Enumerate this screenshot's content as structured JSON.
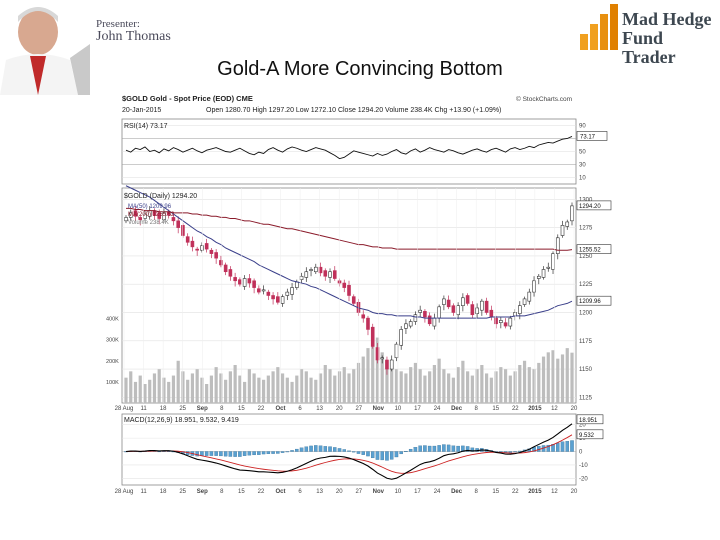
{
  "presenter": {
    "label": "Presenter:",
    "name": "John Thomas"
  },
  "logo": {
    "line1": "Mad Hedge",
    "line2": "Fund Trader",
    "accent": "#f0a020"
  },
  "slide_title": "Gold-A More Convincing Bottom",
  "chart_data": {
    "type": "candlestick",
    "header": {
      "symbol_line": "$GOLD Gold - Spot Price (EOD) CME",
      "source": "© StockCharts.com",
      "date": "20-Jan-2015",
      "quote": "Open 1280.70 High 1297.20 Low 1272.10 Close 1294.20 Volume 238.4K Chg +13.90 (+1.09%)"
    },
    "rsi": {
      "label": "RSI(14) 73.17",
      "ticks": [
        90,
        70,
        50,
        30,
        10
      ],
      "ylim": [
        0,
        100
      ],
      "last_value_label": "73.17",
      "values": [
        52,
        49,
        55,
        53,
        57,
        50,
        52,
        48,
        54,
        51,
        56,
        53,
        49,
        52,
        55,
        51,
        48,
        52,
        54,
        56,
        53,
        50,
        49,
        52,
        55,
        51,
        47,
        45,
        49,
        47,
        53,
        56,
        52,
        49,
        54,
        57,
        55,
        52,
        50,
        53,
        56,
        54,
        52,
        48,
        44,
        39,
        41,
        46,
        51,
        49,
        47,
        45,
        43,
        47,
        44,
        46,
        50,
        53,
        48,
        46,
        51,
        54,
        49,
        52,
        56,
        53,
        51,
        49,
        53,
        51,
        48,
        46,
        49,
        52,
        54,
        51,
        49,
        53,
        55,
        52,
        49,
        54,
        56,
        53,
        55,
        58,
        56,
        60,
        62,
        64,
        63,
        66,
        69,
        70,
        73.17
      ]
    },
    "price": {
      "label": "$GOLD (Daily) 1294.20",
      "legend": [
        "MA(50) 1209.96",
        "MA(200) 1255.52",
        "Volume 238.4K"
      ],
      "ticks": [
        1300,
        1275,
        1250,
        1225,
        1200,
        1175,
        1150,
        1125
      ],
      "ylim": [
        1120,
        1310
      ],
      "last_labels": [
        "1294.20",
        "1255.52",
        "1209.96"
      ],
      "volume_ticks": [
        "400K",
        "300K",
        "200K",
        "100K"
      ],
      "volume_max": 450,
      "x_labels": [
        "28 Aug",
        "11",
        "18",
        "25",
        "Sep",
        "8",
        "15",
        "22",
        "Oct",
        "6",
        "13",
        "20",
        "27",
        "Nov",
        "10",
        "17",
        "24",
        "Dec",
        "8",
        "15",
        "22",
        "2015",
        "12",
        "20"
      ],
      "closes": [
        1284,
        1288,
        1285,
        1282,
        1287,
        1290,
        1286,
        1283,
        1288,
        1286,
        1281,
        1275,
        1268,
        1262,
        1258,
        1255,
        1259,
        1256,
        1252,
        1248,
        1242,
        1236,
        1232,
        1228,
        1225,
        1230,
        1226,
        1222,
        1218,
        1220,
        1215,
        1212,
        1209,
        1214,
        1218,
        1222,
        1227,
        1232,
        1236,
        1238,
        1240,
        1235,
        1232,
        1236,
        1230,
        1226,
        1222,
        1215,
        1208,
        1200,
        1195,
        1185,
        1170,
        1158,
        1160,
        1150,
        1158,
        1172,
        1185,
        1190,
        1192,
        1198,
        1202,
        1196,
        1190,
        1195,
        1205,
        1212,
        1205,
        1200,
        1206,
        1213,
        1208,
        1198,
        1204,
        1210,
        1200,
        1196,
        1190,
        1193,
        1188,
        1195,
        1200,
        1206,
        1212,
        1218,
        1228,
        1232,
        1238,
        1240,
        1252,
        1266,
        1277,
        1280,
        1294.2
      ],
      "ma50": [
        1312,
        1310,
        1308,
        1306,
        1304,
        1302,
        1299,
        1296,
        1293,
        1290,
        1287,
        1284,
        1281,
        1278,
        1275,
        1272,
        1270,
        1267,
        1265,
        1262,
        1260,
        1257,
        1255,
        1253,
        1251,
        1249,
        1247,
        1245,
        1242,
        1240,
        1238,
        1236,
        1234,
        1232,
        1230,
        1228,
        1227,
        1226,
        1225,
        1223,
        1222,
        1220,
        1218,
        1216,
        1214,
        1212,
        1210,
        1208,
        1206,
        1204,
        1203,
        1202,
        1200,
        1199,
        1199,
        1198,
        1198,
        1197,
        1197,
        1197,
        1197,
        1196,
        1196,
        1195,
        1195,
        1195,
        1195,
        1195,
        1195,
        1195,
        1195,
        1195,
        1195,
        1195,
        1195,
        1195,
        1195,
        1196,
        1196,
        1196,
        1196,
        1196,
        1197,
        1197,
        1197,
        1198,
        1199,
        1200,
        1201,
        1202,
        1204,
        1206,
        1207,
        1208,
        1209.96
      ],
      "ma200": [
        1292,
        1292,
        1291,
        1291,
        1290,
        1290,
        1290,
        1289,
        1289,
        1289,
        1288,
        1288,
        1288,
        1288,
        1287,
        1287,
        1286,
        1286,
        1285,
        1285,
        1284,
        1284,
        1283,
        1283,
        1282,
        1281,
        1281,
        1280,
        1279,
        1278,
        1278,
        1277,
        1276,
        1275,
        1274,
        1274,
        1273,
        1272,
        1271,
        1270,
        1269,
        1268,
        1267,
        1266,
        1265,
        1264,
        1263,
        1262,
        1261,
        1260,
        1260,
        1259,
        1258,
        1258,
        1257,
        1257,
        1257,
        1256,
        1256,
        1256,
        1256,
        1256,
        1256,
        1256,
        1256,
        1256,
        1256,
        1256,
        1256,
        1256,
        1256,
        1256,
        1256,
        1256,
        1256,
        1256,
        1256,
        1256,
        1256,
        1256,
        1256,
        1256,
        1256,
        1256,
        1256,
        1256,
        1256,
        1256,
        1256,
        1256,
        1256,
        1255,
        1255,
        1255,
        1255.52
      ],
      "volume": [
        120,
        150,
        100,
        130,
        90,
        110,
        140,
        160,
        120,
        100,
        130,
        200,
        150,
        110,
        140,
        160,
        120,
        90,
        130,
        170,
        140,
        110,
        150,
        180,
        130,
        100,
        160,
        140,
        120,
        110,
        130,
        150,
        170,
        140,
        120,
        100,
        130,
        160,
        150,
        120,
        110,
        140,
        180,
        160,
        130,
        150,
        170,
        140,
        160,
        190,
        220,
        260,
        280,
        310,
        240,
        200,
        180,
        160,
        150,
        140,
        170,
        190,
        160,
        130,
        150,
        180,
        210,
        160,
        140,
        120,
        170,
        200,
        150,
        130,
        160,
        180,
        140,
        120,
        150,
        170,
        160,
        130,
        150,
        180,
        200,
        170,
        160,
        190,
        220,
        240,
        250,
        210,
        230,
        260,
        238.4
      ]
    },
    "macd": {
      "label": "MACD(12,26,9) 18.951, 9.532, 9.419",
      "ticks": [
        20,
        10,
        0,
        -10,
        -20
      ],
      "ylim": [
        -25,
        28
      ],
      "last_labels": [
        "18.951",
        "9.532"
      ],
      "x_labels": [
        "28 Aug",
        "11",
        "18",
        "25",
        "Sep",
        "8",
        "15",
        "22",
        "Oct",
        "6",
        "13",
        "20",
        "27",
        "Nov",
        "10",
        "17",
        "24",
        "Dec",
        "8",
        "15",
        "22",
        "2015",
        "12",
        "20"
      ]
    },
    "colors": {
      "up": "#333333",
      "down": "#c0305a",
      "ma50": "#3a3f8a",
      "ma200": "#8a1a2a",
      "volume": "#bdbdbd",
      "histogram": "#5aa0d0",
      "signal": "#cc2222",
      "macd": "#000000"
    }
  }
}
